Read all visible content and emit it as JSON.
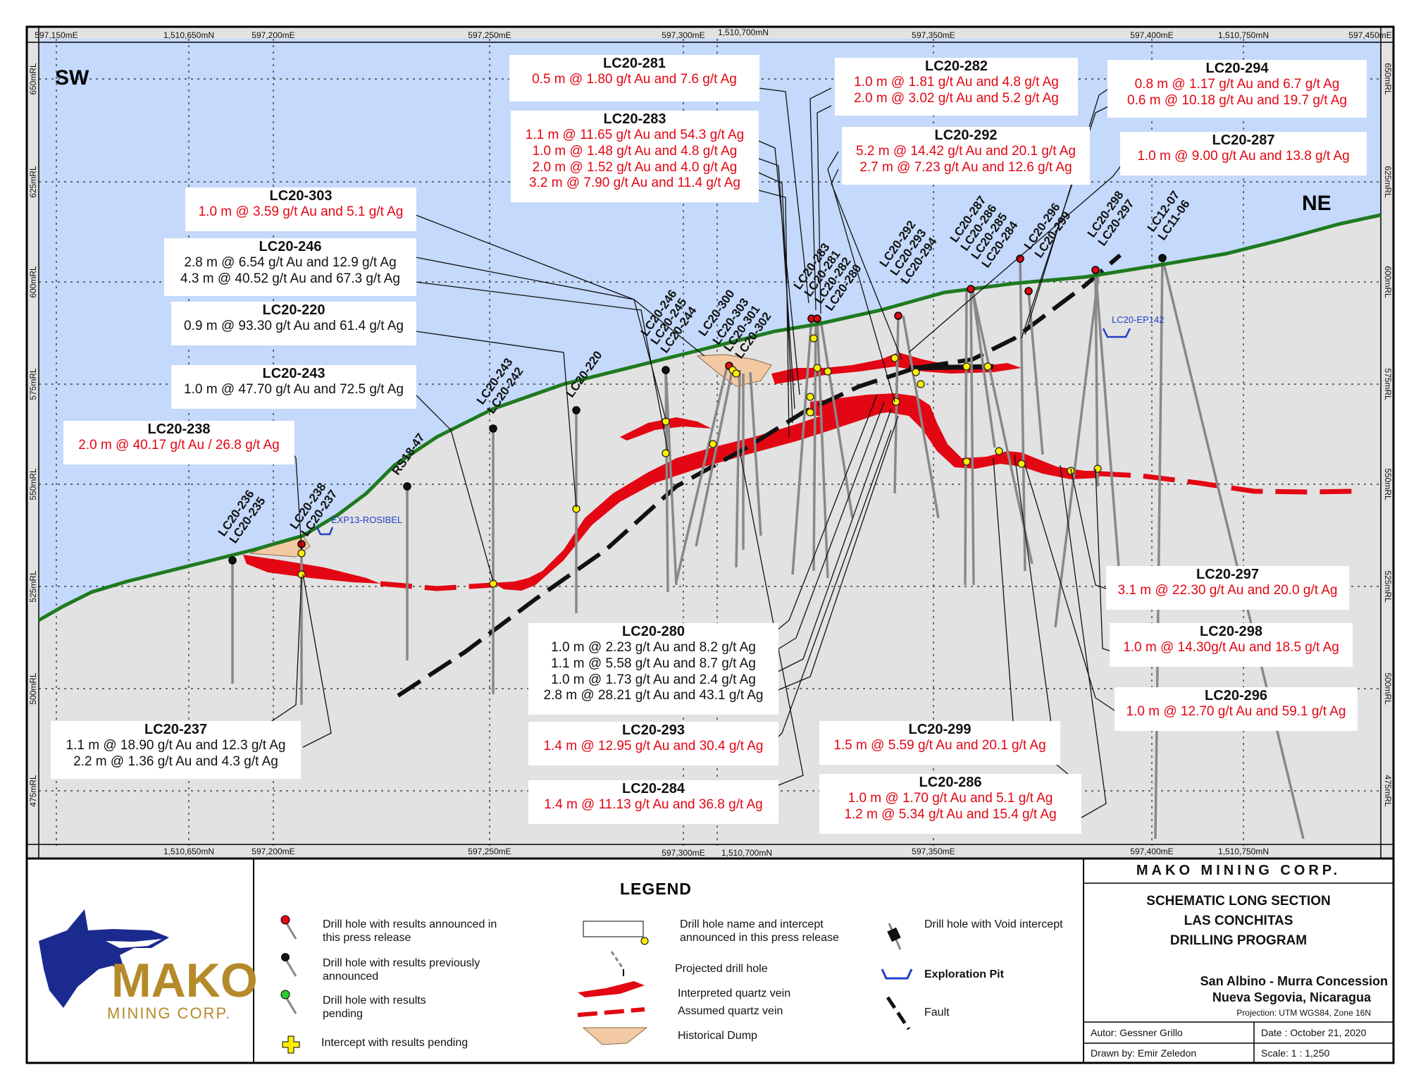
{
  "directions": {
    "sw": "SW",
    "ne": "NE"
  },
  "grid": {
    "top_labels": [
      "597,150mE",
      "1,510,650mN",
      "597,200mE",
      "597,250mE",
      "597,300mE",
      "1,510,700mN",
      "597,350mE",
      "597,400mE",
      "1,510,750mN",
      "597,450mE"
    ],
    "bottom_labels": [
      "1,510,650mN",
      "597,200mE",
      "597,250mE",
      "597,300mE",
      "1,510,700mN",
      "597,350mE",
      "597,400mE",
      "1,510,750mN"
    ],
    "elevations": [
      "650mRL",
      "625mRL",
      "600mRL",
      "575mRL",
      "550mRL",
      "525mRL",
      "500mRL",
      "475mRL"
    ]
  },
  "holes": [
    {
      "name": "LC20-236",
      "status": "previous"
    },
    {
      "name": "LC20-235",
      "status": "previous"
    },
    {
      "name": "LC20-238",
      "status": "new"
    },
    {
      "name": "LC20-237",
      "status": "new"
    },
    {
      "name": "RS18-47",
      "status": "previous"
    },
    {
      "name": "LC20-243",
      "status": "previous"
    },
    {
      "name": "LC20-242",
      "status": "previous"
    },
    {
      "name": "LC20-220",
      "status": "previous"
    },
    {
      "name": "LC20-246",
      "status": "previous"
    },
    {
      "name": "LC20-245",
      "status": "previous"
    },
    {
      "name": "LC20-244",
      "status": "previous"
    },
    {
      "name": "LC20-300",
      "status": "new"
    },
    {
      "name": "LC20-303",
      "status": "new"
    },
    {
      "name": "LC20-301",
      "status": "new"
    },
    {
      "name": "LC20-302",
      "status": "new"
    },
    {
      "name": "LC20-283",
      "status": "new"
    },
    {
      "name": "LC20-281",
      "status": "new"
    },
    {
      "name": "LC20-282",
      "status": "new"
    },
    {
      "name": "LC20-280",
      "status": "new"
    },
    {
      "name": "LC20-292",
      "status": "new"
    },
    {
      "name": "LC20-293",
      "status": "new"
    },
    {
      "name": "LC20-294",
      "status": "new"
    },
    {
      "name": "LC20-287",
      "status": "new"
    },
    {
      "name": "LC20-286",
      "status": "new"
    },
    {
      "name": "LC20-285",
      "status": "new"
    },
    {
      "name": "LC20-284",
      "status": "new"
    },
    {
      "name": "LC20-296",
      "status": "new"
    },
    {
      "name": "LC20-299",
      "status": "new"
    },
    {
      "name": "LC20-298",
      "status": "new"
    },
    {
      "name": "LC20-297",
      "status": "new"
    },
    {
      "name": "LC12-07",
      "status": "previous"
    },
    {
      "name": "LC11-06",
      "status": "previous"
    }
  ],
  "pits": [
    {
      "name": "EXP13-ROSIBEL"
    },
    {
      "name": "LC20-EP142"
    }
  ],
  "callouts": [
    {
      "id": "lc20-281",
      "title": "LC20-281",
      "color": "red",
      "lines": [
        "0.5 m @ 1.80 g/t Au and 7.6 g/t Ag"
      ]
    },
    {
      "id": "lc20-283",
      "title": "LC20-283",
      "color": "red",
      "lines": [
        "1.1 m @ 11.65 g/t Au and 54.3 g/t Ag",
        "1.0 m @ 1.48 g/t Au and 4.8 g/t Ag",
        "2.0 m @ 1.52 g/t Au and 4.0 g/t Ag",
        "3.2 m @ 7.90 g/t Au and 11.4 g/t Ag"
      ]
    },
    {
      "id": "lc20-282",
      "title": "LC20-282",
      "color": "red",
      "lines": [
        "1.0 m @ 1.81 g/t Au and 4.8 g/t Ag",
        "2.0 m @ 3.02 g/t Au and 5.2 g/t Ag"
      ]
    },
    {
      "id": "lc20-292",
      "title": "LC20-292",
      "color": "red",
      "lines": [
        "5.2 m @ 14.42 g/t Au and 20.1 g/t Ag",
        "2.7 m @ 7.23 g/t Au and 12.6 g/t Ag"
      ]
    },
    {
      "id": "lc20-294",
      "title": "LC20-294",
      "color": "red",
      "lines": [
        "0.8 m @ 1.17 g/t Au and 6.7 g/t Ag",
        "0.6 m @ 10.18 g/t Au and 19.7 g/t Ag"
      ]
    },
    {
      "id": "lc20-287",
      "title": "LC20-287",
      "color": "red",
      "lines": [
        "1.0 m @ 9.00 g/t Au and 13.8 g/t Ag"
      ]
    },
    {
      "id": "lc20-303",
      "title": "LC20-303",
      "color": "red",
      "lines": [
        "1.0 m @ 3.59 g/t Au and 5.1 g/t Ag"
      ]
    },
    {
      "id": "lc20-246",
      "title": "LC20-246",
      "color": "black",
      "lines": [
        "2.8 m @ 6.54 g/t Au and 12.9 g/t Ag",
        "4.3 m @ 40.52 g/t Au and 67.3 g/t Ag"
      ]
    },
    {
      "id": "lc20-220",
      "title": "LC20-220",
      "color": "black",
      "lines": [
        "0.9 m @ 93.30 g/t Au and 61.4 g/t Ag"
      ]
    },
    {
      "id": "lc20-243",
      "title": "LC20-243",
      "color": "black",
      "lines": [
        "1.0 m @ 47.70 g/t Au and 72.5 g/t Ag"
      ]
    },
    {
      "id": "lc20-238",
      "title": "LC20-238",
      "color": "red",
      "lines": [
        "2.0 m @ 40.17 g/t Au / 26.8 g/t Ag"
      ]
    },
    {
      "id": "lc20-237",
      "title": "LC20-237",
      "color": "black",
      "lines": [
        "1.1 m @ 18.90 g/t Au and 12.3 g/t Ag",
        "2.2 m @ 1.36 g/t Au and 4.3 g/t Ag"
      ]
    },
    {
      "id": "lc20-280",
      "title": "LC20-280",
      "color": "black",
      "lines": [
        "1.0 m @ 2.23 g/t Au and 8.2 g/t Ag",
        "1.1 m @ 5.58 g/t Au and 8.7 g/t Ag",
        "1.0 m @ 1.73 g/t Au and 2.4 g/t Ag",
        "2.8 m @ 28.21 g/t Au and 43.1 g/t Ag"
      ]
    },
    {
      "id": "lc20-293",
      "title": "LC20-293",
      "color": "red",
      "lines": [
        "1.4 m @ 12.95 g/t Au and 30.4 g/t Ag"
      ]
    },
    {
      "id": "lc20-284",
      "title": "LC20-284",
      "color": "red",
      "lines": [
        "1.4 m @ 11.13 g/t Au and 36.8 g/t Ag"
      ]
    },
    {
      "id": "lc20-299",
      "title": "LC20-299",
      "color": "red",
      "lines": [
        "1.5 m @ 5.59 g/t Au and 20.1 g/t Ag"
      ]
    },
    {
      "id": "lc20-286",
      "title": "LC20-286",
      "color": "red",
      "lines": [
        "1.0 m @ 1.70 g/t Au and 5.1 g/t Ag",
        "1.2 m @ 5.34 g/t Au and 15.4 g/t Ag"
      ]
    },
    {
      "id": "lc20-297",
      "title": "LC20-297",
      "color": "red",
      "lines": [
        "3.1 m @ 22.30 g/t Au and 20.0 g/t Ag"
      ]
    },
    {
      "id": "lc20-298",
      "title": "LC20-298",
      "color": "red",
      "lines": [
        "1.0 m @ 14.30g/t Au and 18.5 g/t Ag"
      ]
    },
    {
      "id": "lc20-296",
      "title": "LC20-296",
      "color": "red",
      "lines": [
        "1.0 m @ 12.70 g/t Au and 59.1 g/t Ag"
      ]
    }
  ],
  "legend": {
    "title": "LEGEND",
    "items": [
      "Drill hole with results announced in this press release",
      "Drill hole with results previously announced",
      "Drill hole with results pending",
      "Intercept with results pending",
      "Drill hole name and intercept announced in this press release",
      "Projected drill hole",
      "Interpreted quartz vein",
      "Assumed quartz vein",
      "Historical Dump",
      "Drill hole with Void intercept",
      "Exploration Pit",
      "Fault"
    ]
  },
  "logo": {
    "word": "MAKO",
    "sub": "MINING CORP."
  },
  "title_block": {
    "company": "MAKO MINING CORP.",
    "title_lines": [
      "SCHEMATIC LONG SECTION",
      "LAS CONCHITAS",
      "DRILLING PROGRAM"
    ],
    "location_lines": [
      "San Albino - Murra Concession",
      "Nueva Segovia, Nicaragua"
    ],
    "projection": "Projection: UTM WGS84, Zone 16N",
    "author": "Autor: Gessner Grillo",
    "drawn_by": "Drawn by: Emir Zeledon",
    "date": "Date : October 21, 2020",
    "scale": "Scale: 1 :  1,250"
  },
  "colors": {
    "sky": "#c4d9fb",
    "ground": "#e2e2e2",
    "topo": "#1e7a1e",
    "vein": "#e30613",
    "new_hole": "#e30613",
    "pending": "#ffee00",
    "fault": "#111111",
    "dump": "#f3c9a3",
    "pit": "#1f3fc8"
  }
}
